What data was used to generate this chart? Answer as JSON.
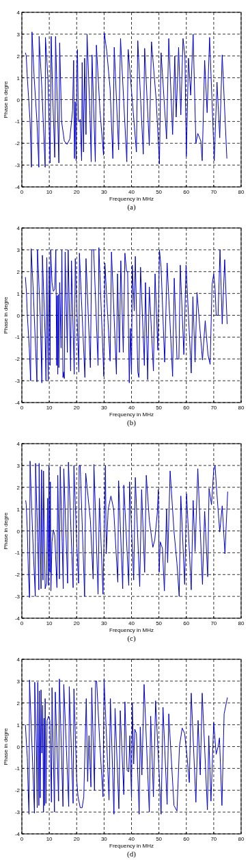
{
  "chart_data": [
    {
      "type": "line",
      "xlabel": "Frequency in MHz",
      "ylabel": "Phase in degre",
      "annotations": [
        "(a)"
      ],
      "xlim": [
        0,
        80
      ],
      "ylim": [
        -4,
        4
      ],
      "xticks": [
        0,
        10,
        20,
        30,
        40,
        50,
        60,
        70,
        80
      ],
      "yticks": [
        -4,
        -3,
        -2,
        -1,
        0,
        1,
        2,
        3,
        4
      ],
      "grid": true,
      "series": [
        {
          "color": "#0000cc",
          "x": [
            1.3,
            1.6,
            2.0,
            3.0,
            3.5,
            3.7,
            4.5,
            5.5,
            6.2,
            6.3,
            7.3,
            8.5,
            8.6,
            9.5,
            10.3,
            10.7,
            11.3,
            12.0,
            12.3,
            13.0,
            13.5,
            13.8,
            14.5,
            15.5,
            16.5,
            17.5,
            18.5,
            18.9,
            19.2,
            19.5,
            19.8,
            20.1,
            20.3,
            20.6,
            21.0,
            21.3,
            21.8,
            22.0,
            22.5,
            22.9,
            23.4,
            23.8,
            24.8,
            25.3,
            25.6,
            26.8,
            27.2,
            28.5,
            29.8,
            30.1,
            31.0,
            32.2,
            33.2,
            33.7,
            35.3,
            36.0,
            38.3,
            38.8,
            41.8,
            42.3,
            44.3,
            44.8,
            46.5,
            47.3,
            49.0,
            50.2,
            50.8,
            52.8,
            53.6,
            55.0,
            55.8,
            56.3,
            57.2,
            58.0,
            58.8,
            59.5,
            60.0,
            60.8,
            61.6,
            62.5,
            63.5,
            64.2,
            65.3,
            65.8,
            66.7,
            67.6,
            68.5,
            70.2,
            71.2,
            72.2,
            73.1,
            74.8
          ],
          "values": [
            2.15,
            2.0,
            1.0,
            -1.0,
            -3.1,
            3.1,
            1.0,
            -1.0,
            -3.1,
            2.9,
            0.5,
            -3.1,
            2.85,
            1.0,
            -2.9,
            2.9,
            0,
            -2.65,
            2.9,
            -0.5,
            -2.9,
            2.6,
            -1.0,
            -1.9,
            -2.05,
            -1.8,
            -0.5,
            1.8,
            -2.7,
            -0.1,
            -2.8,
            1.6,
            2.3,
            -1.0,
            -1.0,
            -0.9,
            -2.8,
            1.7,
            -2.4,
            1.9,
            -1.6,
            3.0,
            -0.5,
            -2.85,
            2.05,
            -2.85,
            2.5,
            -0.5,
            -2.55,
            3.05,
            2.2,
            0.5,
            -2.7,
            2.4,
            -2.3,
            2.8,
            -2.85,
            2.3,
            -2.4,
            2.7,
            -2.5,
            2.35,
            -2.1,
            2.65,
            0.0,
            -2.95,
            2.15,
            -1.8,
            2.8,
            -1.6,
            2.0,
            -0.8,
            2.4,
            -0.7,
            2.8,
            2.0,
            -2.6,
            1.9,
            0.2,
            3.0,
            -2.0,
            -1.55,
            -1.9,
            -2.8,
            1.8,
            -0.6,
            2.85,
            -2.8,
            0.8,
            -1.75,
            2.05,
            -2.7
          ]
        }
      ]
    },
    {
      "type": "line",
      "xlabel": "Frequency in MHz",
      "ylabel": "Phase in degre",
      "annotations": [
        "(b)"
      ],
      "xlim": [
        0,
        80
      ],
      "ylim": [
        -4,
        4
      ],
      "xticks": [
        0,
        10,
        20,
        30,
        40,
        50,
        60,
        70,
        80
      ],
      "yticks": [
        -4,
        -3,
        -2,
        -1,
        0,
        1,
        2,
        3,
        4
      ],
      "grid": true,
      "series": [
        {
          "color": "#0000cc",
          "x": [
            1.3,
            1.7,
            2.0,
            2.7,
            3.2,
            3.4,
            4.2,
            5.0,
            5.5,
            5.7,
            6.7,
            7.3,
            7.5,
            8.5,
            8.8,
            9.1,
            9.6,
            10.0,
            10.3,
            10.5,
            11.0,
            11.5,
            12.0,
            12.4,
            12.7,
            12.9,
            13.1,
            13.3,
            13.5,
            13.8,
            14.3,
            14.6,
            15.0,
            15.2,
            15.5,
            15.8,
            16.6,
            16.9,
            17.8,
            18.1,
            19.1,
            19.5,
            20.8,
            21.0,
            23.0,
            23.4,
            25.0,
            25.5,
            26.2,
            27.8,
            28.1,
            29.9,
            30.3,
            32.2,
            32.7,
            34.5,
            34.9,
            35.6,
            36.1,
            37.0,
            37.6,
            38.2,
            38.6,
            39.2,
            39.6,
            40.0,
            40.3,
            41.0,
            41.4,
            42.3,
            42.7,
            43.3,
            44.7,
            45.1,
            45.9,
            46.5,
            48.0,
            48.6,
            49.6,
            50.2,
            50.8,
            52.1,
            53.0,
            55.0,
            55.6,
            56.6,
            57.3,
            57.8,
            59.1,
            59.9,
            61.8,
            62.4,
            63.2,
            63.9,
            65.9,
            66.9,
            67.9,
            68.7,
            69.4,
            70.0,
            70.5,
            70.9,
            71.6,
            72.3,
            73.1,
            74.0,
            74.9
          ],
          "values": [
            1.75,
            1.0,
            0.0,
            -1.5,
            -3.0,
            3.05,
            1.0,
            -1.5,
            -3.05,
            3.0,
            0,
            -3.1,
            2.75,
            -1.0,
            -3.0,
            2.65,
            -3.0,
            2.2,
            -2.3,
            3.0,
            1.5,
            1.1,
            1.2,
            3.0,
            -2.3,
            0.9,
            -2.7,
            0.95,
            -2.4,
            1.5,
            -1.5,
            3.0,
            -2.85,
            -2.6,
            -2.9,
            2.9,
            -1.7,
            3.0,
            -2.55,
            2.5,
            -2.7,
            2.6,
            -2.6,
            2.85,
            -2.85,
            2.6,
            -2.4,
            3.0,
            3.0,
            -2.3,
            3.1,
            -2.8,
            2.4,
            -2.1,
            2.9,
            -2.7,
            1.9,
            -1.7,
            2.5,
            -1.7,
            2.85,
            2.0,
            2.0,
            -3.1,
            -0.6,
            -2.7,
            2.3,
            0.2,
            2.7,
            -2.6,
            -2.85,
            2.2,
            -2.3,
            1.5,
            -2.95,
            1.3,
            -2.55,
            1.9,
            -1.6,
            3.0,
            2.2,
            -2.15,
            2.4,
            -2.8,
            1.7,
            -2.0,
            -2.0,
            2.3,
            -1.8,
            2.3,
            -2.65,
            0.85,
            -2.15,
            1.05,
            -2.05,
            -0.25,
            -1.8,
            -2.25,
            1.4,
            1.9,
            1.2,
            0.0,
            0.0,
            3.0,
            -0.4,
            2.55,
            -0.4
          ]
        }
      ]
    },
    {
      "type": "line",
      "xlabel": "Frequency in MHz",
      "ylabel": "Phase in degre",
      "annotations": [
        "(c)"
      ],
      "xlim": [
        0,
        80
      ],
      "ylim": [
        -4,
        4
      ],
      "xticks": [
        0,
        10,
        20,
        30,
        40,
        50,
        60,
        70,
        80
      ],
      "yticks": [
        -4,
        -3,
        -2,
        -1,
        0,
        1,
        2,
        3,
        4
      ],
      "grid": true,
      "series": [
        {
          "color": "#0000cc",
          "x": [
            1.4,
            1.6,
            2.0,
            2.4,
            2.8,
            3.0,
            3.6,
            4.2,
            4.9,
            5.0,
            5.8,
            6.2,
            6.3,
            7.0,
            7.2,
            7.7,
            7.9,
            8.5,
            9.0,
            9.4,
            9.7,
            9.9,
            10.2,
            10.4,
            10.6,
            11.0,
            11.5,
            12.0,
            12.8,
            13.1,
            13.7,
            14.0,
            14.7,
            15.1,
            15.3,
            16.7,
            17.0,
            18.7,
            19.0,
            20.0,
            20.7,
            20.9,
            21.3,
            22.9,
            23.3,
            25.0,
            26.0,
            26.3,
            27.8,
            28.3,
            29.6,
            30.5,
            30.8,
            31.5,
            32.5,
            33.5,
            35.0,
            35.3,
            36.8,
            37.2,
            39.0,
            39.3,
            40.8,
            41.4,
            43.0,
            43.7,
            44.8,
            45.4,
            46.5,
            47.8,
            48.5,
            49.4,
            49.8,
            50.1,
            50.5,
            51.3,
            52.0,
            52.8,
            53.2,
            54.1,
            55.5,
            56.6,
            57.4,
            58.0,
            59.4,
            60.1,
            61.8,
            62.5,
            63.2,
            64.2,
            65.9,
            66.7,
            67.8,
            68.3,
            69.2,
            70.0,
            70.5,
            71.0,
            72.2,
            73.1,
            74.1,
            75.1
          ],
          "values": [
            1.4,
            1.2,
            0.0,
            -2.0,
            -3.05,
            3.2,
            1.0,
            -1.0,
            -3.0,
            3.1,
            -0.5,
            -2.7,
            3.1,
            -2.65,
            2.8,
            -2.25,
            2.75,
            -2.65,
            -2.4,
            1.5,
            -2.5,
            3.0,
            -1.9,
            2.25,
            -2.75,
            -0.5,
            0.05,
            -0.2,
            -2.6,
            2.55,
            -2.2,
            2.95,
            -0.5,
            -2.65,
            2.85,
            -2.4,
            3.15,
            -2.6,
            3.0,
            -0.5,
            -2.4,
            3.0,
            3.0,
            -3.0,
            2.65,
            0.5,
            -2.2,
            3.05,
            -2.9,
            1.5,
            -2.9,
            3.0,
            -1.05,
            1.0,
            1.6,
            1.0,
            -2.35,
            2.3,
            -2.65,
            2.1,
            -2.5,
            2.25,
            -2.25,
            2.45,
            -2.55,
            1.9,
            -1.9,
            2.55,
            0.5,
            -0.75,
            -0.4,
            0.8,
            1.9,
            -1.9,
            -0.5,
            -0.8,
            -2.75,
            1.0,
            -1.45,
            2.75,
            0.0,
            -1.5,
            -3.0,
            1.6,
            -2.45,
            1.7,
            -2.7,
            1.4,
            -0.95,
            2.85,
            -2.45,
            0.9,
            -2.1,
            1.95,
            1.2,
            2.8,
            3.0,
            2.0,
            -0.05,
            1.15,
            -1.05,
            1.8
          ]
        }
      ]
    },
    {
      "type": "line",
      "xlabel": "Frequency in MHz",
      "ylabel": "Phase in degre",
      "annotations": [
        "(d)"
      ],
      "xlim": [
        0,
        80
      ],
      "ylim": [
        -4,
        4
      ],
      "xticks": [
        0,
        10,
        20,
        30,
        40,
        50,
        60,
        70,
        80
      ],
      "yticks": [
        -4,
        -3,
        -2,
        -1,
        0,
        1,
        2,
        3,
        4
      ],
      "grid": true,
      "series": [
        {
          "color": "#0000cc",
          "x": [
            1.3,
            1.6,
            2.0,
            2.3,
            2.6,
            2.8,
            3.4,
            4.0,
            4.6,
            4.7,
            5.3,
            5.6,
            5.8,
            6.2,
            6.4,
            6.7,
            7.0,
            7.3,
            7.6,
            7.9,
            8.1,
            8.3,
            8.5,
            8.8,
            9.2,
            9.8,
            10.2,
            10.8,
            11.0,
            11.9,
            12.2,
            13.4,
            13.7,
            15.0,
            15.3,
            17.1,
            17.3,
            18.7,
            19.0,
            20.0,
            20.5,
            21.3,
            22.0,
            22.6,
            23.5,
            24.0,
            24.5,
            25.2,
            25.5,
            26.5,
            26.9,
            27.3,
            28.5,
            29.6,
            30.0,
            30.7,
            31.8,
            32.3,
            33.6,
            34.0,
            35.4,
            35.9,
            37.2,
            37.6,
            38.4,
            39.0,
            39.4,
            40.0,
            40.3,
            40.8,
            41.2,
            41.8,
            42.8,
            43.2,
            43.8,
            44.6,
            46.5,
            47.0,
            48.0,
            48.8,
            50.0,
            50.8,
            51.5,
            53.0,
            53.6,
            55.5,
            56.6,
            57.5,
            58.5,
            59.4,
            60.3,
            61.1,
            61.8,
            63.5,
            64.3,
            65.1,
            65.8,
            67.7,
            68.2,
            69.0,
            70.0,
            70.9,
            71.6,
            72.1,
            73.0,
            73.8,
            75.0
          ],
          "values": [
            1.0,
            0.3,
            -0.5,
            -2.0,
            -3.1,
            3.05,
            1.0,
            -1.0,
            -3.05,
            2.95,
            0.0,
            -2.8,
            2.95,
            -2.7,
            2.55,
            -2.35,
            2.6,
            -0.3,
            1.9,
            -3.0,
            1.3,
            -2.7,
            2.2,
            -2.6,
            1.2,
            1.4,
            1.2,
            -2.55,
            2.7,
            -3.0,
            2.5,
            -2.5,
            3.1,
            -2.75,
            2.85,
            -2.75,
            2.75,
            -2.6,
            2.65,
            -1.5,
            -2.3,
            -2.8,
            -2.8,
            -2.3,
            2.2,
            -1.6,
            0.5,
            -1.85,
            2.7,
            -2.0,
            3.0,
            3.0,
            0.0,
            -2.3,
            3.1,
            1.0,
            -2.45,
            2.2,
            -3.1,
            1.75,
            -2.85,
            1.65,
            -2.2,
            2.05,
            -1.1,
            -1.15,
            0.5,
            -2.35,
            2.0,
            -0.8,
            0.8,
            0.6,
            -3.1,
            0.9,
            -1.3,
            2.85,
            -3.0,
            1.4,
            -2.3,
            2.1,
            -1.0,
            -3.1,
            1.8,
            -2.65,
            1.5,
            -2.7,
            -2.95,
            0.0,
            0.85,
            0.6,
            -0.5,
            -1.65,
            2.45,
            -2.55,
            1.2,
            -1.3,
            2.45,
            -2.9,
            0.5,
            -2.5,
            1.1,
            -0.35,
            0.0,
            0.4,
            -2.7,
            1.5,
            2.25
          ]
        }
      ]
    }
  ]
}
